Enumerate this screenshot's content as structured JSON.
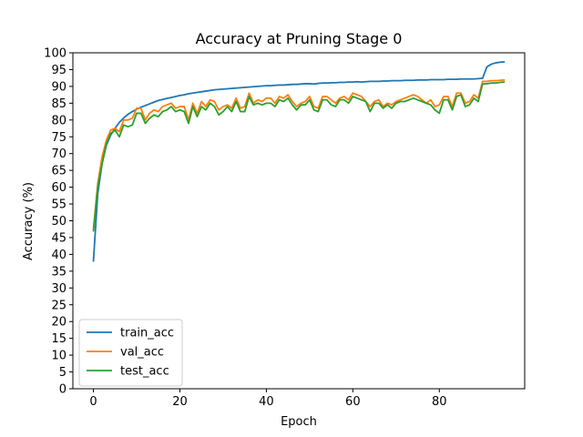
{
  "chart_data": {
    "type": "line",
    "title": "Accuracy at Pruning Stage 0",
    "xlabel": "Epoch",
    "ylabel": "Accuracy (%)",
    "xlim": [
      -4.75,
      99.75
    ],
    "ylim": [
      0,
      100
    ],
    "xticks": [
      0,
      20,
      40,
      60,
      80
    ],
    "yticks": [
      0,
      5,
      10,
      15,
      20,
      25,
      30,
      35,
      40,
      45,
      50,
      55,
      60,
      65,
      70,
      75,
      80,
      85,
      90,
      95,
      100
    ],
    "grid": false,
    "legend_position": "lower-left",
    "x": [
      0,
      1,
      2,
      3,
      4,
      5,
      6,
      7,
      8,
      9,
      10,
      11,
      12,
      13,
      14,
      15,
      16,
      17,
      18,
      19,
      20,
      21,
      22,
      23,
      24,
      25,
      26,
      27,
      28,
      29,
      30,
      31,
      32,
      33,
      34,
      35,
      36,
      37,
      38,
      39,
      40,
      41,
      42,
      43,
      44,
      45,
      46,
      47,
      48,
      49,
      50,
      51,
      52,
      53,
      54,
      55,
      56,
      57,
      58,
      59,
      60,
      61,
      62,
      63,
      64,
      65,
      66,
      67,
      68,
      69,
      70,
      71,
      72,
      73,
      74,
      75,
      76,
      77,
      78,
      79,
      80,
      81,
      82,
      83,
      84,
      85,
      86,
      87,
      88,
      89,
      90,
      91,
      92,
      93,
      94,
      95
    ],
    "series": [
      {
        "name": "train_acc",
        "color": "#1f77b4",
        "values": [
          38.0,
          58.0,
          67.0,
          72.5,
          75.5,
          77.5,
          79.3,
          80.6,
          81.7,
          82.5,
          83.2,
          83.8,
          84.3,
          84.8,
          85.3,
          85.8,
          86.1,
          86.4,
          86.7,
          87.0,
          87.3,
          87.5,
          87.8,
          88.0,
          88.2,
          88.4,
          88.6,
          88.8,
          89.0,
          89.1,
          89.2,
          89.3,
          89.4,
          89.5,
          89.6,
          89.7,
          89.8,
          89.9,
          90.0,
          90.1,
          90.2,
          90.2,
          90.3,
          90.4,
          90.4,
          90.5,
          90.6,
          90.6,
          90.7,
          90.8,
          90.8,
          90.7,
          90.9,
          91.0,
          91.0,
          91.1,
          91.1,
          91.2,
          91.2,
          91.3,
          91.3,
          91.4,
          91.3,
          91.4,
          91.5,
          91.5,
          91.5,
          91.6,
          91.6,
          91.7,
          91.7,
          91.7,
          91.8,
          91.8,
          91.8,
          91.9,
          91.9,
          91.9,
          92.0,
          92.0,
          92.0,
          92.0,
          92.1,
          92.1,
          92.1,
          92.2,
          92.2,
          92.2,
          92.2,
          92.3,
          92.4,
          95.8,
          96.6,
          97.0,
          97.2,
          97.3
        ]
      },
      {
        "name": "val_acc",
        "color": "#ff7f0e",
        "values": [
          47.5,
          61.0,
          69.0,
          74.0,
          77.0,
          77.5,
          76.5,
          80.0,
          80.0,
          80.5,
          83.5,
          83.5,
          80.0,
          82.0,
          83.0,
          82.5,
          84.0,
          84.5,
          85.0,
          83.5,
          84.0,
          84.0,
          80.0,
          85.0,
          82.0,
          85.5,
          84.0,
          86.0,
          85.5,
          83.0,
          84.0,
          84.5,
          83.5,
          86.5,
          83.5,
          84.0,
          88.0,
          85.0,
          86.0,
          85.5,
          86.5,
          86.5,
          85.0,
          87.0,
          86.5,
          87.5,
          85.5,
          84.0,
          85.0,
          85.5,
          87.0,
          84.0,
          83.5,
          87.0,
          87.0,
          86.0,
          85.0,
          86.5,
          87.0,
          86.0,
          88.0,
          87.5,
          87.0,
          85.5,
          84.0,
          85.5,
          86.0,
          84.0,
          85.0,
          84.5,
          85.5,
          86.0,
          86.5,
          87.0,
          87.5,
          87.0,
          86.0,
          85.0,
          86.0,
          84.0,
          84.5,
          87.0,
          87.0,
          84.0,
          88.0,
          88.0,
          85.0,
          85.5,
          87.5,
          86.5,
          91.5,
          91.5,
          91.7,
          91.7,
          91.8,
          91.9
        ]
      },
      {
        "name": "test_acc",
        "color": "#2ca02c",
        "values": [
          47.0,
          60.0,
          67.0,
          73.0,
          76.0,
          77.0,
          75.0,
          78.5,
          78.0,
          78.5,
          82.0,
          82.0,
          79.0,
          80.5,
          81.5,
          81.0,
          82.5,
          83.0,
          84.0,
          82.5,
          83.0,
          82.5,
          79.0,
          84.0,
          81.0,
          84.0,
          83.0,
          85.0,
          84.0,
          81.5,
          82.5,
          84.0,
          82.5,
          85.5,
          82.5,
          82.5,
          87.0,
          84.5,
          85.0,
          84.5,
          85.0,
          85.0,
          84.0,
          86.0,
          85.5,
          86.5,
          84.5,
          83.0,
          84.5,
          84.5,
          86.0,
          83.0,
          82.5,
          86.0,
          86.0,
          84.5,
          84.0,
          86.0,
          86.0,
          85.0,
          87.0,
          86.5,
          86.0,
          85.5,
          82.5,
          85.0,
          85.0,
          83.5,
          84.5,
          83.5,
          85.0,
          85.5,
          85.5,
          86.0,
          86.5,
          86.0,
          85.5,
          85.0,
          84.5,
          83.0,
          82.0,
          86.0,
          86.0,
          83.0,
          87.0,
          87.5,
          84.0,
          84.5,
          86.5,
          85.5,
          90.7,
          90.8,
          91.0,
          91.0,
          91.2,
          91.3
        ]
      }
    ]
  }
}
